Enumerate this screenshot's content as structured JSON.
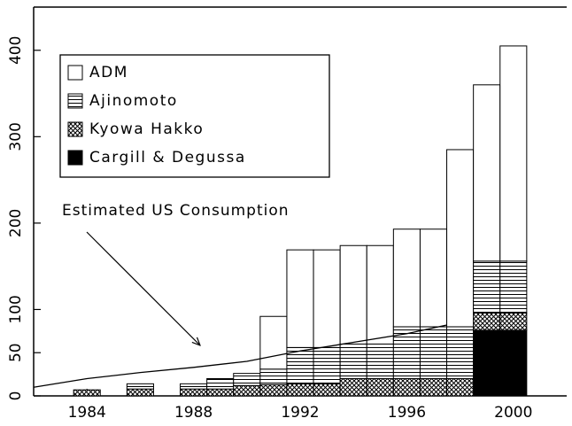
{
  "chart_data": {
    "type": "stacked_bar",
    "x": [
      1984,
      1986,
      1988,
      1989,
      1990,
      1991,
      1992,
      1993,
      1994,
      1995,
      1996,
      1997,
      1998,
      1999,
      2000
    ],
    "series": [
      {
        "name": "ADM",
        "color": "#ffffff",
        "pattern": "none",
        "values": [
          0,
          0,
          0,
          0,
          0,
          61,
          113,
          113,
          114,
          114,
          113,
          113,
          205,
          204,
          249
        ]
      },
      {
        "name": "Ajinomoto",
        "color": "#ffffff",
        "pattern": "horizontal",
        "values": [
          0,
          6,
          6,
          12,
          14,
          18,
          42,
          42,
          40,
          40,
          60,
          60,
          60,
          60,
          60
        ]
      },
      {
        "name": "Kyowa Hakko",
        "color": "#ffffff",
        "pattern": "crosshatch",
        "values": [
          7,
          8,
          8,
          8,
          12,
          13,
          14,
          14,
          20,
          20,
          20,
          20,
          20,
          20,
          20
        ]
      },
      {
        "name": "Cargill & Degussa",
        "color": "#000000",
        "pattern": "solid",
        "values": [
          0,
          0,
          0,
          0,
          0,
          0,
          0,
          0,
          0,
          0,
          0,
          0,
          0,
          76,
          76
        ]
      }
    ],
    "line": {
      "name": "Estimated US Consumption",
      "color": "#000000",
      "x": [
        1982,
        1984,
        1986,
        1988,
        1990,
        1992,
        1994,
        1996,
        1997.5
      ],
      "values": [
        10,
        20,
        27,
        33,
        40,
        52,
        62,
        72,
        82
      ]
    },
    "xlim": [
      1982,
      2002
    ],
    "xticks": [
      1984,
      1988,
      1992,
      1996,
      2000
    ],
    "ylim": [
      0,
      450
    ],
    "yticks": [
      0,
      50,
      100,
      200,
      300,
      400
    ],
    "legend": "upper left"
  }
}
